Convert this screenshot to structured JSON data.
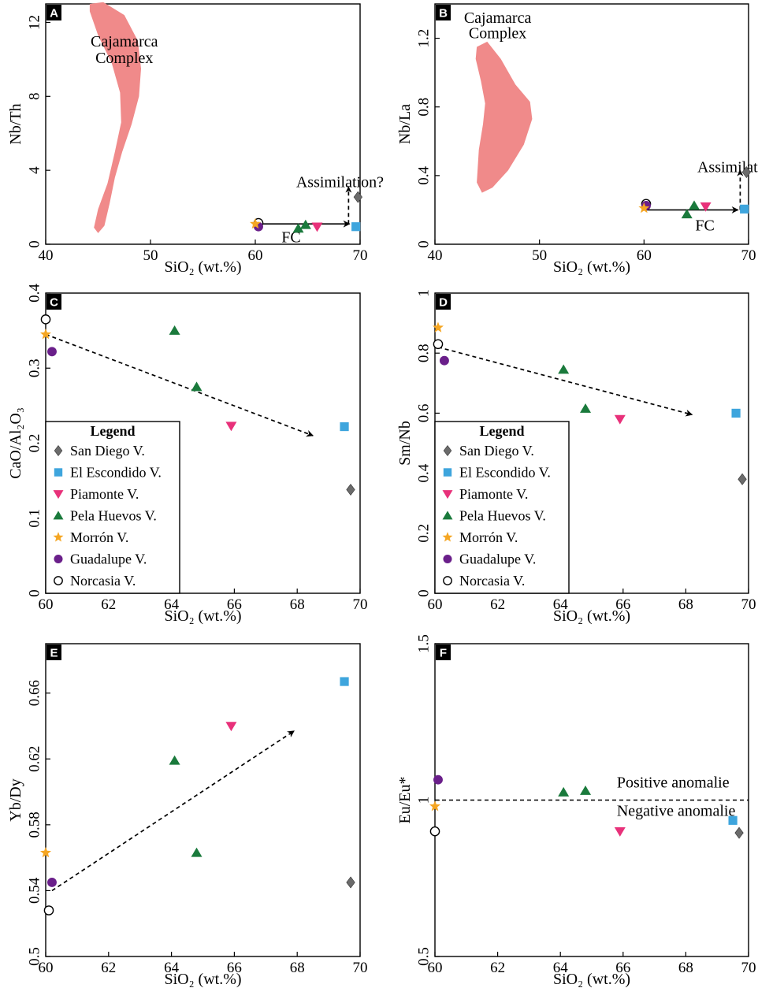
{
  "colors": {
    "san_diego": "#6b6b6b",
    "el_escondido": "#3ea5dd",
    "piamonte": "#e8317a",
    "pela_huevos": "#1a7a3c",
    "morron": "#f5a623",
    "guadalupe": "#6a1f8a",
    "norcasia": "#ffffff",
    "cajamarca_field": "#f08a8a"
  },
  "legend": {
    "title": "Legend",
    "entries": [
      {
        "key": "san_diego",
        "label": "San Diego V.",
        "marker": "diamond"
      },
      {
        "key": "el_escondido",
        "label": "El Escondido V.",
        "marker": "square"
      },
      {
        "key": "piamonte",
        "label": "Piamonte V.",
        "marker": "triangle-down"
      },
      {
        "key": "pela_huevos",
        "label": "Pela Huevos V.",
        "marker": "triangle-up"
      },
      {
        "key": "morron",
        "label": "Morrón V.",
        "marker": "star"
      },
      {
        "key": "guadalupe",
        "label": "Guadalupe V.",
        "marker": "circle"
      },
      {
        "key": "norcasia",
        "label": "Norcasia V.",
        "marker": "circle-open"
      }
    ]
  },
  "chart_data": [
    {
      "panel": "A",
      "type": "scatter",
      "xlabel": "SiO₂ (wt.%)",
      "ylabel": "Nb/Th",
      "xlim": [
        40,
        70
      ],
      "ylim": [
        0,
        13
      ],
      "xticks": [
        40,
        50,
        60,
        70
      ],
      "yticks": [
        0,
        4,
        8,
        12
      ],
      "xtick_labels": [
        "40",
        "50",
        "60",
        "70"
      ],
      "ytick_labels": [
        "0",
        "4",
        "8",
        "12"
      ],
      "field": {
        "label": [
          "Cajamarca",
          "Complex"
        ],
        "polygon": [
          [
            44.2,
            13.0
          ],
          [
            45.5,
            13.1
          ],
          [
            47.5,
            12.4
          ],
          [
            48.8,
            11.0
          ],
          [
            49.1,
            9.5
          ],
          [
            48.9,
            8.0
          ],
          [
            48.2,
            6.5
          ],
          [
            47.3,
            5.0
          ],
          [
            46.6,
            3.6
          ],
          [
            46.1,
            2.2
          ],
          [
            45.6,
            1.0
          ],
          [
            45.0,
            0.6
          ],
          [
            44.6,
            0.9
          ],
          [
            45.0,
            1.9
          ],
          [
            45.9,
            3.3
          ],
          [
            46.6,
            5.0
          ],
          [
            47.2,
            6.6
          ],
          [
            47.1,
            8.2
          ],
          [
            46.3,
            9.8
          ],
          [
            45.0,
            11.3
          ],
          [
            44.2,
            12.6
          ]
        ]
      },
      "annotations": [
        {
          "text": "Assimilation?",
          "x": 63.9,
          "y": 3.1
        },
        {
          "text": "FC",
          "x": 62.5,
          "y": 0.1
        }
      ],
      "arrows": [
        {
          "from": [
            60.2,
            1.1
          ],
          "to": [
            69.0,
            1.1
          ],
          "style": "solid"
        },
        {
          "from": [
            68.9,
            1.1
          ],
          "to": [
            68.9,
            3.1
          ],
          "style": "dashed"
        }
      ],
      "series": [
        {
          "key": "norcasia",
          "points": [
            [
              60.3,
              1.15
            ]
          ]
        },
        {
          "key": "guadalupe",
          "points": [
            [
              60.3,
              0.95
            ]
          ]
        },
        {
          "key": "morron",
          "points": [
            [
              60.0,
              1.1
            ]
          ]
        },
        {
          "key": "pela_huevos",
          "points": [
            [
              64.1,
              0.85
            ],
            [
              64.8,
              1.05
            ]
          ]
        },
        {
          "key": "piamonte",
          "points": [
            [
              65.9,
              0.95
            ]
          ]
        },
        {
          "key": "el_escondido",
          "points": [
            [
              69.6,
              0.95
            ]
          ]
        },
        {
          "key": "san_diego",
          "points": [
            [
              69.8,
              2.55
            ]
          ]
        }
      ]
    },
    {
      "panel": "B",
      "type": "scatter",
      "xlabel": "SiO₂ (wt.%)",
      "ylabel": "Nb/La",
      "xlim": [
        40,
        70
      ],
      "ylim": [
        0,
        1.4
      ],
      "xticks": [
        40,
        50,
        60,
        70
      ],
      "yticks": [
        0,
        0.4,
        0.8,
        1.2
      ],
      "xtick_labels": [
        "40",
        "50",
        "60",
        "70"
      ],
      "ytick_labels": [
        "0",
        "0.4",
        "0.8",
        "1.2"
      ],
      "field": {
        "label": [
          "Cajamarca",
          "Complex"
        ],
        "polygon": [
          [
            44.0,
            1.15
          ],
          [
            45.0,
            1.18
          ],
          [
            46.3,
            1.08
          ],
          [
            47.7,
            0.93
          ],
          [
            49.1,
            0.83
          ],
          [
            49.3,
            0.73
          ],
          [
            48.5,
            0.58
          ],
          [
            47.0,
            0.43
          ],
          [
            45.5,
            0.33
          ],
          [
            44.5,
            0.3
          ],
          [
            44.0,
            0.36
          ],
          [
            44.2,
            0.55
          ],
          [
            44.6,
            0.7
          ],
          [
            44.8,
            0.82
          ],
          [
            44.4,
            0.95
          ],
          [
            43.9,
            1.08
          ]
        ]
      },
      "annotations": [
        {
          "text": "Assimilation?",
          "x": 65.1,
          "y": 0.42
        },
        {
          "text": "FC",
          "x": 64.9,
          "y": 0.08
        }
      ],
      "arrows": [
        {
          "from": [
            60.0,
            0.2
          ],
          "to": [
            69.0,
            0.2
          ],
          "style": "solid"
        },
        {
          "from": [
            69.2,
            0.2
          ],
          "to": [
            69.2,
            0.43
          ],
          "style": "dashed"
        }
      ],
      "series": [
        {
          "key": "norcasia",
          "points": [
            [
              60.2,
              0.235
            ]
          ]
        },
        {
          "key": "guadalupe",
          "points": [
            [
              60.2,
              0.225
            ]
          ]
        },
        {
          "key": "morron",
          "points": [
            [
              60.0,
              0.21
            ]
          ]
        },
        {
          "key": "pela_huevos",
          "points": [
            [
              64.1,
              0.175
            ],
            [
              64.8,
              0.225
            ]
          ]
        },
        {
          "key": "piamonte",
          "points": [
            [
              65.9,
              0.22
            ]
          ]
        },
        {
          "key": "el_escondido",
          "points": [
            [
              69.6,
              0.205
            ]
          ]
        },
        {
          "key": "san_diego",
          "points": [
            [
              69.8,
              0.42
            ]
          ]
        }
      ]
    },
    {
      "panel": "C",
      "type": "scatter",
      "xlabel": "SiO₂ (wt.%)",
      "ylabel": "CaO/Al₂O₃",
      "xlim": [
        60,
        70
      ],
      "ylim": [
        0,
        0.4
      ],
      "xticks": [
        60,
        62,
        64,
        66,
        68,
        70
      ],
      "yticks": [
        0,
        0.1,
        0.2,
        0.3,
        0.4
      ],
      "xtick_labels": [
        "60",
        "62",
        "64",
        "66",
        "68",
        "70"
      ],
      "ytick_labels": [
        "0",
        "0.1",
        "0.2",
        "0.3",
        "0.4"
      ],
      "legend_position": "lower-left",
      "annotations": [],
      "arrows": [
        {
          "from": [
            60.0,
            0.345
          ],
          "to": [
            68.5,
            0.21
          ],
          "style": "dashed"
        }
      ],
      "series": [
        {
          "key": "norcasia",
          "points": [
            [
              60.0,
              0.365
            ]
          ]
        },
        {
          "key": "morron",
          "points": [
            [
              60.0,
              0.345
            ]
          ]
        },
        {
          "key": "guadalupe",
          "points": [
            [
              60.2,
              0.322
            ]
          ]
        },
        {
          "key": "pela_huevos",
          "points": [
            [
              64.1,
              0.35
            ],
            [
              64.8,
              0.275
            ]
          ]
        },
        {
          "key": "piamonte",
          "points": [
            [
              65.9,
              0.223
            ]
          ]
        },
        {
          "key": "el_escondido",
          "points": [
            [
              69.5,
              0.222
            ]
          ]
        },
        {
          "key": "san_diego",
          "points": [
            [
              69.7,
              0.138
            ]
          ]
        }
      ]
    },
    {
      "panel": "D",
      "type": "scatter",
      "xlabel": "SiO₂ (wt.%)",
      "ylabel": "Sm/Nb",
      "xlim": [
        60,
        70
      ],
      "ylim": [
        0,
        1
      ],
      "xticks": [
        60,
        62,
        64,
        66,
        68,
        70
      ],
      "yticks": [
        0,
        0.2,
        0.4,
        0.6,
        0.8,
        1
      ],
      "xtick_labels": [
        "60",
        "62",
        "64",
        "66",
        "68",
        "70"
      ],
      "ytick_labels": [
        "0",
        "0.2",
        "0.4",
        "0.6",
        "0.8",
        "1"
      ],
      "legend_position": "lower-left",
      "annotations": [],
      "arrows": [
        {
          "from": [
            60.1,
            0.82
          ],
          "to": [
            68.2,
            0.595
          ],
          "style": "dashed"
        }
      ],
      "series": [
        {
          "key": "morron",
          "points": [
            [
              60.1,
              0.885
            ]
          ]
        },
        {
          "key": "norcasia",
          "points": [
            [
              60.1,
              0.83
            ]
          ]
        },
        {
          "key": "guadalupe",
          "points": [
            [
              60.3,
              0.775
            ]
          ]
        },
        {
          "key": "pela_huevos",
          "points": [
            [
              64.1,
              0.745
            ],
            [
              64.8,
              0.615
            ]
          ]
        },
        {
          "key": "piamonte",
          "points": [
            [
              65.9,
              0.58
            ]
          ]
        },
        {
          "key": "el_escondido",
          "points": [
            [
              69.6,
              0.6
            ]
          ]
        },
        {
          "key": "san_diego",
          "points": [
            [
              69.8,
              0.38
            ]
          ]
        }
      ]
    },
    {
      "panel": "E",
      "type": "scatter",
      "xlabel": "SiO₂ (wt.%)",
      "ylabel": "Yb/Dy",
      "xlim": [
        60,
        70
      ],
      "ylim": [
        0.5,
        0.69
      ],
      "xticks": [
        60,
        62,
        64,
        66,
        68,
        70
      ],
      "yticks": [
        0.5,
        0.54,
        0.58,
        0.62,
        0.66
      ],
      "xtick_labels": [
        "60",
        "62",
        "64",
        "66",
        "68",
        "70"
      ],
      "ytick_labels": [
        "0.5",
        "0.54",
        "0.58",
        "0.62",
        "0.66"
      ],
      "annotations": [],
      "arrows": [
        {
          "from": [
            60.2,
            0.54
          ],
          "to": [
            67.9,
            0.637
          ],
          "style": "dashed"
        }
      ],
      "series": [
        {
          "key": "morron",
          "points": [
            [
              60.0,
              0.563
            ]
          ]
        },
        {
          "key": "guadalupe",
          "points": [
            [
              60.2,
              0.545
            ]
          ]
        },
        {
          "key": "norcasia",
          "points": [
            [
              60.1,
              0.528
            ]
          ]
        },
        {
          "key": "pela_huevos",
          "points": [
            [
              64.1,
              0.619
            ],
            [
              64.8,
              0.563
            ]
          ]
        },
        {
          "key": "piamonte",
          "points": [
            [
              65.9,
              0.64
            ]
          ]
        },
        {
          "key": "el_escondido",
          "points": [
            [
              69.5,
              0.667
            ]
          ]
        },
        {
          "key": "san_diego",
          "points": [
            [
              69.7,
              0.545
            ]
          ]
        }
      ]
    },
    {
      "panel": "F",
      "type": "scatter",
      "xlabel": "SiO₂ (wt.%)",
      "ylabel": "Eu/Eu*",
      "xlim": [
        60,
        70
      ],
      "ylim": [
        0.5,
        1.5
      ],
      "xticks": [
        60,
        62,
        64,
        66,
        68,
        70
      ],
      "yticks": [
        0.5,
        1,
        1.5
      ],
      "xtick_labels": [
        "60",
        "62",
        "64",
        "66",
        "68",
        "70"
      ],
      "ytick_labels": [
        "0.5",
        "1",
        "1.5"
      ],
      "reference_line": {
        "y": 1.0,
        "style": "dashed"
      },
      "annotations": [
        {
          "text": "Positive anomalie",
          "x": 65.8,
          "y": 1.04
        },
        {
          "text": "Negative anomalie",
          "x": 65.8,
          "y": 0.95
        }
      ],
      "arrows": [],
      "series": [
        {
          "key": "guadalupe",
          "points": [
            [
              60.1,
              1.065
            ]
          ]
        },
        {
          "key": "morron",
          "points": [
            [
              60.0,
              0.98
            ]
          ]
        },
        {
          "key": "norcasia",
          "points": [
            [
              60.0,
              0.9
            ]
          ]
        },
        {
          "key": "pela_huevos",
          "points": [
            [
              64.1,
              1.025
            ],
            [
              64.8,
              1.03
            ]
          ]
        },
        {
          "key": "piamonte",
          "points": [
            [
              65.9,
              0.9
            ]
          ]
        },
        {
          "key": "el_escondido",
          "points": [
            [
              69.5,
              0.935
            ]
          ]
        },
        {
          "key": "san_diego",
          "points": [
            [
              69.7,
              0.895
            ]
          ]
        }
      ]
    }
  ]
}
